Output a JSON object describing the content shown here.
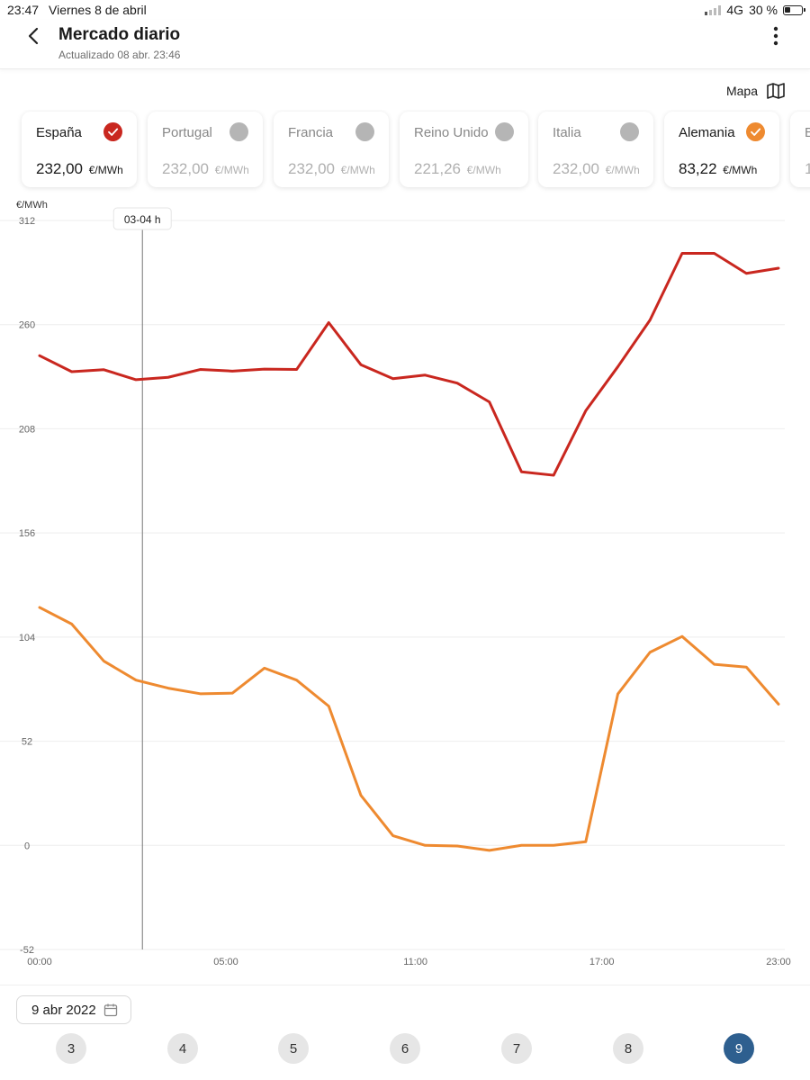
{
  "status_bar": {
    "time": "23:47",
    "date": "Viernes 8 de abril",
    "network": "4G",
    "battery": "30 %"
  },
  "header": {
    "title": "Mercado diario",
    "subtitle": "Actualizado 08 abr. 23:46"
  },
  "map_button": {
    "label": "Mapa",
    "icon": "map-icon"
  },
  "countries": [
    {
      "name": "España",
      "value": "232,00",
      "unit": "€/MWh",
      "selected": true,
      "color": "#c9271f"
    },
    {
      "name": "Portugal",
      "value": "232,00",
      "unit": "€/MWh",
      "selected": false,
      "color": "#b5b5b5"
    },
    {
      "name": "Francia",
      "value": "232,00",
      "unit": "€/MWh",
      "selected": false,
      "color": "#b5b5b5"
    },
    {
      "name": "Reino Unido",
      "value": "221,26",
      "unit": "€/MWh",
      "selected": false,
      "color": "#b5b5b5"
    },
    {
      "name": "Italia",
      "value": "232,00",
      "unit": "€/MWh",
      "selected": false,
      "color": "#b5b5b5"
    },
    {
      "name": "Alemania",
      "value": "83,22",
      "unit": "€/MWh",
      "selected": true,
      "color": "#ee8a30"
    },
    {
      "name": "B",
      "value": "1",
      "unit": "",
      "selected": false,
      "color": "#b5b5b5"
    }
  ],
  "chart_data": {
    "type": "line",
    "ylabel": "€/MWh",
    "ylim": [
      -52,
      312
    ],
    "yticks": [
      "312",
      "260",
      "208",
      "156",
      "104",
      "52",
      "0",
      "-52"
    ],
    "xlim": [
      0,
      23
    ],
    "xticks": [
      "00:00",
      "05:00",
      "11:00",
      "17:00",
      "23:00"
    ],
    "xtick_hours": [
      0,
      5.8,
      11.7,
      17.5,
      23
    ],
    "cursor": {
      "label": "03-04 h",
      "hour": 3.2
    },
    "grid": true,
    "series": [
      {
        "name": "España",
        "color": "#c9271f",
        "values": [
          244.5,
          236.5,
          237.5,
          232.5,
          233.7,
          237.6,
          236.8,
          237.8,
          237.6,
          261,
          240,
          233,
          234.8,
          230.8,
          221.4,
          186.5,
          184.8,
          217,
          239,
          262.3,
          295.6,
          295.6,
          285.6,
          288.2
        ]
      },
      {
        "name": "Alemania",
        "color": "#ee8a30",
        "values": [
          118.8,
          110.5,
          92,
          82.5,
          78.5,
          75.7,
          76,
          88.5,
          82.5,
          69.5,
          25,
          4.8,
          0,
          -0.3,
          -2.5,
          0,
          0,
          1.8,
          75.6,
          96.4,
          104.3,
          90.4,
          89,
          70.5
        ]
      }
    ]
  },
  "date_picker": {
    "label": "9 abr 2022",
    "icon": "calendar-icon"
  },
  "day_selector": {
    "days": [
      "3",
      "4",
      "5",
      "6",
      "7",
      "8",
      "9"
    ],
    "selected": "9"
  }
}
